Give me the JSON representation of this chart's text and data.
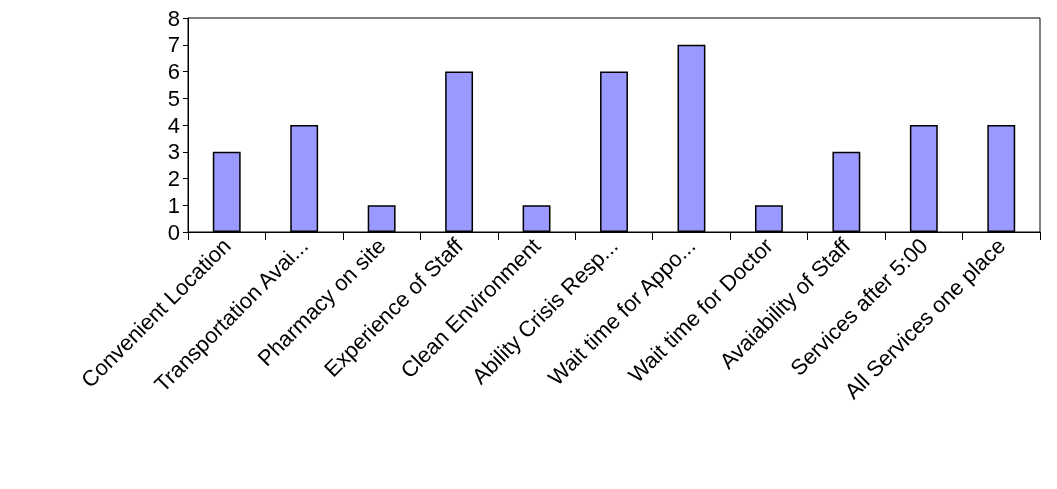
{
  "chart_data": {
    "type": "bar",
    "categories": [
      "Convenient Location",
      "Transportation Avai...",
      "Pharmacy on site",
      "Experience of Staff",
      "Clean Environment",
      "Ability Crisis Resp...",
      "Wait time for Appo...",
      "Wait time for Doctor",
      "Avaiability of Staff",
      "Services after 5:00",
      "All Services one place"
    ],
    "values": [
      3,
      4,
      1,
      6,
      1,
      6,
      7,
      1,
      3,
      4,
      4
    ],
    "color": "#9999ff",
    "ylim": [
      0,
      8
    ],
    "yticks": [
      0,
      1,
      2,
      3,
      4,
      5,
      6,
      7,
      8
    ],
    "grid": false
  }
}
